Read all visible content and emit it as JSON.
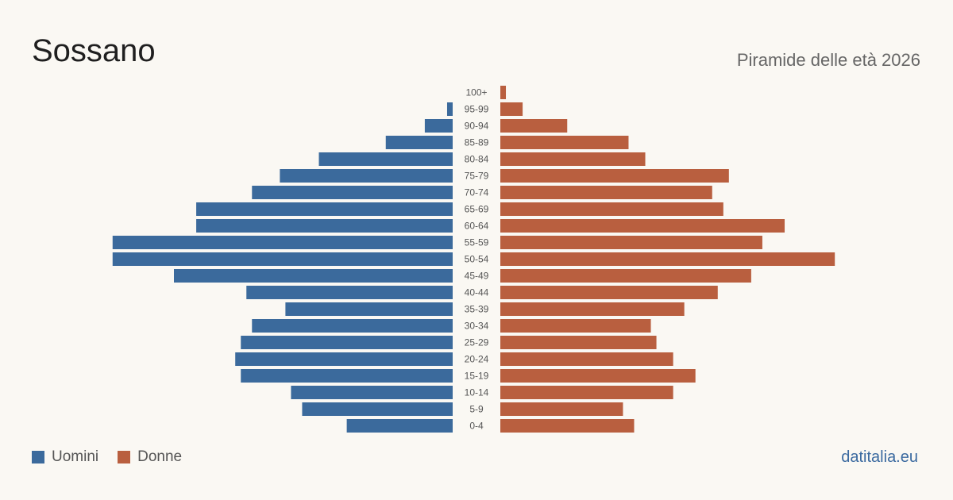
{
  "header": {
    "title": "Sossano",
    "subtitle": "Piramide delle età 2026"
  },
  "legend": {
    "men_label": "Uomini",
    "women_label": "Donne"
  },
  "footer": {
    "credit": "datitalia.eu"
  },
  "colors": {
    "men": "#3b6a9c",
    "women": "#b95f3f",
    "label": "#555555"
  },
  "chart_data": {
    "type": "bar",
    "orientation": "horizontal-pyramid",
    "categories": [
      "100+",
      "95-99",
      "90-94",
      "85-89",
      "80-84",
      "75-79",
      "70-74",
      "65-69",
      "60-64",
      "55-59",
      "50-54",
      "45-49",
      "40-44",
      "35-39",
      "30-34",
      "25-29",
      "20-24",
      "15-19",
      "10-14",
      "5-9",
      "0-4"
    ],
    "series": [
      {
        "name": "Uomini",
        "values": [
          0,
          1,
          5,
          12,
          24,
          31,
          36,
          46,
          46,
          61,
          61,
          50,
          37,
          30,
          36,
          38,
          39,
          38,
          29,
          27,
          19
        ]
      },
      {
        "name": "Donne",
        "values": [
          1,
          4,
          12,
          23,
          26,
          41,
          38,
          40,
          51,
          47,
          60,
          45,
          39,
          33,
          27,
          28,
          31,
          35,
          31,
          22,
          24
        ]
      }
    ],
    "legend_position": "bottom-left",
    "grid": false
  }
}
